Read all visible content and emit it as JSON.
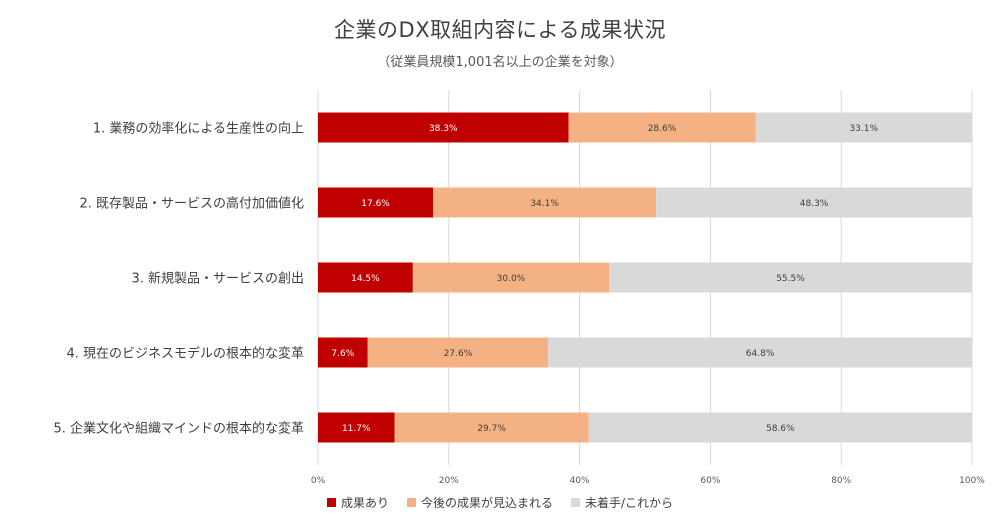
{
  "title": "企業のDX取組内容による成果状況",
  "subtitle": "（従業員規模1,001名以上の企業を対象）",
  "chart_data": {
    "type": "bar",
    "orientation": "horizontal",
    "stacked": true,
    "title": "企業のDX取組内容による成果状況",
    "subtitle": "（従業員規模1,001名以上の企業を対象）",
    "categories": [
      "1. 業務の効率化による生産性の向上",
      "2. 既存製品・サービスの高付加価値化",
      "3. 新規製品・サービスの創出",
      "4. 現在のビジネスモデルの根本的な変革",
      "5. 企業文化や組織マインドの根本的な変革"
    ],
    "series": [
      {
        "name": "成果あり",
        "color": "#c00000",
        "label_color": "#ffffff",
        "values": [
          38.3,
          17.6,
          14.5,
          7.6,
          11.7
        ]
      },
      {
        "name": "今後の成果が見込まれる",
        "color": "#f4b183",
        "label_color": "#404040",
        "values": [
          28.6,
          34.1,
          30.0,
          27.6,
          29.7
        ]
      },
      {
        "name": "未着手/これから",
        "color": "#d9d9d9",
        "label_color": "#404040",
        "values": [
          33.1,
          48.3,
          55.5,
          64.8,
          58.6
        ]
      }
    ],
    "xlim": [
      0,
      100
    ],
    "xticks": [
      0,
      20,
      40,
      60,
      80,
      100
    ],
    "xtick_labels": [
      "0%",
      "20%",
      "40%",
      "60%",
      "80%",
      "100%"
    ],
    "value_format": "percent_1dp",
    "grid": true,
    "legend_position": "bottom"
  }
}
